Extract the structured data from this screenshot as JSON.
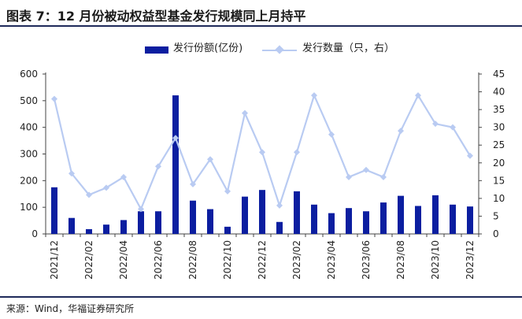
{
  "title": "图表 7：12 月份被动权益型基金发行规模同上月持平",
  "source": "来源：Wind，华福证券研究所",
  "colors": {
    "bar": "#0b1ea0",
    "line": "#b9cbf2",
    "axis": "#444444",
    "header_rule": "#1f2a5a"
  },
  "chart_data": {
    "type": "bar",
    "categories": [
      "2021/12",
      "2022/01",
      "2022/02",
      "2022/03",
      "2022/04",
      "2022/05",
      "2022/06",
      "2022/07",
      "2022/08",
      "2022/09",
      "2022/10",
      "2022/11",
      "2022/12",
      "2023/01",
      "2023/02",
      "2023/03",
      "2023/04",
      "2023/05",
      "2023/06",
      "2023/07",
      "2023/08",
      "2023/09",
      "2023/10",
      "2023/11",
      "2023/12"
    ],
    "tick_labels": [
      "2021/12",
      "2022/02",
      "2022/04",
      "2022/06",
      "2022/08",
      "2022/10",
      "2022/12",
      "2023/02",
      "2023/04",
      "2023/06",
      "2023/08",
      "2023/10",
      "2023/12"
    ],
    "series": [
      {
        "name": "发行份额(亿份)",
        "type": "bar",
        "axis": "left",
        "values": [
          175,
          60,
          18,
          35,
          52,
          85,
          85,
          520,
          125,
          93,
          27,
          140,
          165,
          45,
          160,
          110,
          78,
          97,
          85,
          118,
          143,
          105,
          145,
          110,
          103
        ]
      },
      {
        "name": "发行数量（只，右）",
        "type": "line",
        "axis": "right",
        "values": [
          38,
          17,
          11,
          13,
          16,
          7,
          19,
          27,
          14,
          21,
          12,
          34,
          23,
          8,
          23,
          39,
          28,
          16,
          18,
          16,
          29,
          39,
          31,
          30,
          22
        ]
      }
    ],
    "ylim_left": [
      0,
      600
    ],
    "yticks_left": [
      "0",
      "100",
      "200",
      "300",
      "400",
      "500",
      "600"
    ],
    "ylim_right": [
      0,
      45
    ],
    "yticks_right": [
      "0",
      "5",
      "10",
      "15",
      "20",
      "25",
      "30",
      "35",
      "40",
      "45"
    ],
    "grid": false,
    "legend_position": "top"
  }
}
